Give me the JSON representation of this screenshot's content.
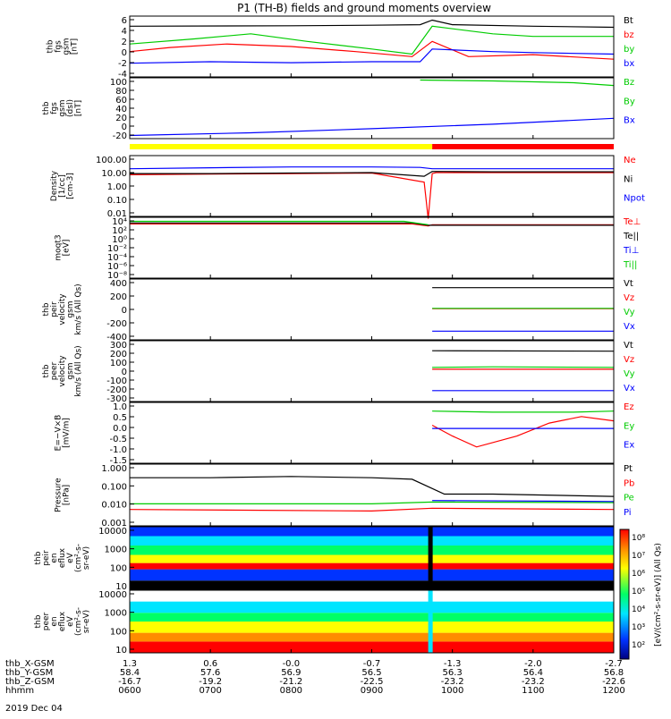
{
  "title": "P1 (TH-B) fields and ground moments overview",
  "date_label": "2019 Dec 04",
  "ephemeris": {
    "row_labels": [
      "thb_X-GSM",
      "thb_Y-GSM",
      "thb_Z-GSM",
      "hhmm"
    ],
    "columns": [
      {
        "x": "1.3",
        "y": "58.4",
        "z": "-16.7",
        "t": "0600"
      },
      {
        "x": "0.6",
        "y": "57.6",
        "z": "-19.2",
        "t": "0700"
      },
      {
        "x": "-0.0",
        "y": "56.9",
        "z": "-21.2",
        "t": "0800"
      },
      {
        "x": "-0.7",
        "y": "56.5",
        "z": "-22.5",
        "t": "0900"
      },
      {
        "x": "-1.3",
        "y": "56.3",
        "z": "-23.2",
        "t": "1000"
      },
      {
        "x": "-2.0",
        "y": "56.4",
        "z": "-23.2",
        "t": "1100"
      },
      {
        "x": "-2.7",
        "y": "56.8",
        "z": "-22.6",
        "t": "1200"
      }
    ]
  },
  "colorbar": {
    "ticks": [
      "10⁸",
      "10⁷",
      "10⁶",
      "10⁵",
      "10⁴",
      "10³",
      "10²"
    ],
    "label": "[eV/(cm²-s-sr-eV)] (All Qs)",
    "colors": [
      "#ff0000",
      "#ff8c00",
      "#ffff00",
      "#00ff66",
      "#00e5ff",
      "#0033ff",
      "#000080"
    ]
  },
  "chart_data": [
    {
      "type": "line",
      "ylabel": [
        "thb",
        "fgs",
        "gsm",
        "[nT]"
      ],
      "ylim": [
        -6,
        6
      ],
      "yticks": [
        "6",
        "4",
        "2",
        "0",
        "-2",
        "-4"
      ],
      "series": [
        {
          "name": "Bt",
          "color": "#000000",
          "x": [
            0.0,
            2.0,
            3.0,
            3.6,
            3.75,
            4.0,
            5.0,
            6.0
          ],
          "y": [
            4.0,
            4.1,
            4.2,
            4.3,
            5.2,
            4.3,
            4.0,
            3.8
          ]
        },
        {
          "name": "bz",
          "color": "#ff0000",
          "x": [
            0.0,
            0.5,
            1.2,
            2.0,
            2.8,
            3.5,
            3.75,
            4.2,
            5.0,
            6.0
          ],
          "y": [
            -1.0,
            -0.2,
            0.5,
            0.0,
            -1.0,
            -2.0,
            1.0,
            -2.0,
            -1.6,
            -2.5
          ]
        },
        {
          "name": "by",
          "color": "#00cc00",
          "x": [
            0.0,
            0.8,
            1.5,
            2.2,
            3.0,
            3.5,
            3.75,
            4.5,
            5.0,
            6.0
          ],
          "y": [
            0.5,
            1.5,
            2.5,
            1.0,
            -0.5,
            -1.5,
            4.0,
            2.5,
            2.0,
            2.0
          ]
        },
        {
          "name": "bx",
          "color": "#0000ff",
          "x": [
            0.0,
            1.0,
            2.0,
            3.0,
            3.6,
            3.75,
            4.5,
            5.0,
            6.0
          ],
          "y": [
            -3.3,
            -3.0,
            -3.2,
            -3.0,
            -3.0,
            -0.5,
            -1.0,
            -1.2,
            -1.5
          ]
        }
      ]
    },
    {
      "type": "line",
      "ylabel": [
        "thb",
        "fgs",
        "gsm",
        "(dsl)",
        "[nT]"
      ],
      "ylim": [
        -30,
        105
      ],
      "yticks": [
        "100",
        "80",
        "60",
        "40",
        "20",
        "0",
        "-20"
      ],
      "series": [
        {
          "name": "Bz",
          "color": "#00cc00",
          "x": [
            3.6,
            4.5,
            5.5,
            6.0
          ],
          "y": [
            100,
            98,
            94,
            88
          ]
        },
        {
          "name": "By",
          "color": "#00cc00",
          "x": [],
          "y": []
        },
        {
          "name": "Bx",
          "color": "#0000ff",
          "x": [
            0.0,
            1.5,
            3.0,
            4.5,
            6.0
          ],
          "y": [
            -23,
            -17,
            -8,
            2,
            15
          ]
        }
      ]
    },
    {
      "type": "line",
      "ylabel": [
        "Density",
        "[1/cc]",
        "[cm-3]"
      ],
      "ylim": [
        0.003,
        300
      ],
      "log": true,
      "yticks": [
        "100.00",
        "10.00",
        "1.00",
        "0.10",
        "0.01"
      ],
      "series": [
        {
          "name": "Ne",
          "color": "#ff0000",
          "x": [
            0.0,
            1.0,
            2.0,
            3.0,
            3.65,
            3.7,
            3.75,
            3.8,
            4.5,
            6.0
          ],
          "y": [
            8,
            9,
            10,
            11,
            2,
            0.002,
            10,
            12,
            12,
            12
          ]
        },
        {
          "name": "Ni",
          "color": "#000000",
          "x": [
            0.0,
            1.0,
            2.0,
            3.0,
            3.65,
            3.75,
            4.5,
            6.0
          ],
          "y": [
            10,
            10,
            11,
            12,
            6,
            15,
            14,
            14
          ]
        },
        {
          "name": "Npot",
          "color": "#0000ff",
          "x": [
            0.0,
            1.0,
            2.0,
            3.0,
            3.6,
            3.75,
            4.5,
            6.0
          ],
          "y": [
            25,
            30,
            35,
            35,
            32,
            25,
            25,
            25
          ]
        }
      ]
    },
    {
      "type": "line",
      "ylabel": [
        "moqt3",
        "[eV]"
      ],
      "ylim": [
        1e-10,
        10000.0
      ],
      "log": true,
      "yticks": [
        "10⁴",
        "10²",
        "10⁰",
        "10⁻²",
        "10⁻⁴",
        "10⁻⁶",
        "10⁻⁸"
      ],
      "series": [
        {
          "name": "Te⊥",
          "color": "#ff0000",
          "x": [
            0.0,
            3.5,
            3.7,
            3.75,
            6.0
          ],
          "y": [
            300,
            300,
            100,
            200,
            200
          ]
        },
        {
          "name": "Te||",
          "color": "#000000",
          "x": [
            0.0,
            3.5,
            3.7,
            6.0
          ],
          "y": [
            500,
            500,
            150,
            150
          ]
        },
        {
          "name": "Ti⊥",
          "color": "#0000ff",
          "x": [],
          "y": []
        },
        {
          "name": "Ti||",
          "color": "#00cc00",
          "x": [
            0.0,
            3.4,
            3.7
          ],
          "y": [
            1200,
            1200,
            200
          ]
        }
      ]
    },
    {
      "type": "line",
      "ylabel": [
        "thb",
        "peir",
        "velocity",
        "gsm",
        "km/s (All Qs)"
      ],
      "ylim": [
        -420,
        420
      ],
      "yticks": [
        "400",
        "200",
        "0",
        "-200",
        "-400"
      ],
      "series": [
        {
          "name": "Vt",
          "color": "#000000",
          "x": [
            3.75,
            6.0
          ],
          "y": [
            300,
            300
          ]
        },
        {
          "name": "Vz",
          "color": "#ff0000",
          "x": [
            3.75,
            6.0
          ],
          "y": [
            10,
            10
          ]
        },
        {
          "name": "Vy",
          "color": "#00cc00",
          "x": [
            3.75,
            6.0
          ],
          "y": [
            15,
            15
          ]
        },
        {
          "name": "Vx",
          "color": "#0000ff",
          "x": [
            3.75,
            6.0
          ],
          "y": [
            -300,
            -300
          ]
        }
      ]
    },
    {
      "type": "line",
      "ylabel": [
        "thb",
        "peer",
        "velocity",
        "gsm",
        "km/s (All Qs)"
      ],
      "ylim": [
        -320,
        320
      ],
      "yticks": [
        "300",
        "200",
        "100",
        "0",
        "-100",
        "-200",
        "-300"
      ],
      "series": [
        {
          "name": "Vt",
          "color": "#000000",
          "x": [
            3.75,
            6.0
          ],
          "y": [
            215,
            210
          ]
        },
        {
          "name": "Vz",
          "color": "#ff0000",
          "x": [
            3.75,
            6.0
          ],
          "y": [
            20,
            20
          ]
        },
        {
          "name": "Vy",
          "color": "#00cc00",
          "x": [
            3.75,
            4.5,
            6.0
          ],
          "y": [
            40,
            45,
            40
          ]
        },
        {
          "name": "Vx",
          "color": "#0000ff",
          "x": [
            3.75,
            6.0
          ],
          "y": [
            -205,
            -205
          ]
        }
      ]
    },
    {
      "type": "line",
      "ylabel": [
        "E=−V×B",
        "[mV/m]"
      ],
      "ylim": [
        -1.55,
        1.25
      ],
      "yticks": [
        "1.0",
        "0.5",
        "0.0",
        "-0.5",
        "-1.0",
        "-1.5"
      ],
      "series": [
        {
          "name": "Ez",
          "color": "#ff0000",
          "x": [
            3.75,
            4.0,
            4.3,
            4.8,
            5.2,
            5.6,
            6.0
          ],
          "y": [
            0.2,
            -0.3,
            -0.8,
            -0.3,
            0.3,
            0.6,
            0.4
          ]
        },
        {
          "name": "Ey",
          "color": "#00cc00",
          "x": [
            3.75,
            4.5,
            5.5,
            6.0
          ],
          "y": [
            0.85,
            0.8,
            0.8,
            0.85
          ]
        },
        {
          "name": "Ex",
          "color": "#0000ff",
          "x": [
            3.75,
            6.0
          ],
          "y": [
            0.05,
            0.05
          ]
        }
      ]
    },
    {
      "type": "line",
      "ylabel": [
        "Pressure",
        "[nPa]"
      ],
      "ylim": [
        0.0008,
        1.6
      ],
      "log": true,
      "yticks": [
        "1.000",
        "0.100",
        "0.010",
        "0.001"
      ],
      "series": [
        {
          "name": "Pt",
          "color": "#000000",
          "x": [
            0.0,
            1.0,
            2.0,
            3.0,
            3.5,
            3.9,
            4.5,
            6.0
          ],
          "y": [
            0.3,
            0.3,
            0.35,
            0.3,
            0.25,
            0.04,
            0.04,
            0.03
          ]
        },
        {
          "name": "Pb",
          "color": "#ff0000",
          "x": [
            0.0,
            3.0,
            3.75,
            6.0
          ],
          "y": [
            0.006,
            0.005,
            0.007,
            0.006
          ]
        },
        {
          "name": "Pe",
          "color": "#00cc00",
          "x": [
            0.0,
            3.0,
            3.75,
            6.0
          ],
          "y": [
            0.012,
            0.012,
            0.015,
            0.014
          ]
        },
        {
          "name": "Pi",
          "color": "#0000ff",
          "x": [
            3.75,
            6.0
          ],
          "y": [
            0.018,
            0.016
          ]
        }
      ]
    },
    {
      "type": "heatmap",
      "ylabel": [
        "thb",
        "peir",
        "en",
        "eflux",
        "eV",
        "(cm²-s-",
        "sr-eV)"
      ],
      "ylim": [
        5,
        30000
      ],
      "log": true,
      "yticks": [
        "10000",
        "1000",
        "100",
        "10"
      ]
    },
    {
      "type": "heatmap",
      "ylabel": [
        "thb",
        "peer",
        "en",
        "eflux",
        "eV",
        "(cm²-s-",
        "sr-eV)"
      ],
      "ylim": [
        5,
        30000
      ],
      "log": true,
      "yticks": [
        "10000",
        "1000",
        "100",
        "10"
      ]
    }
  ]
}
